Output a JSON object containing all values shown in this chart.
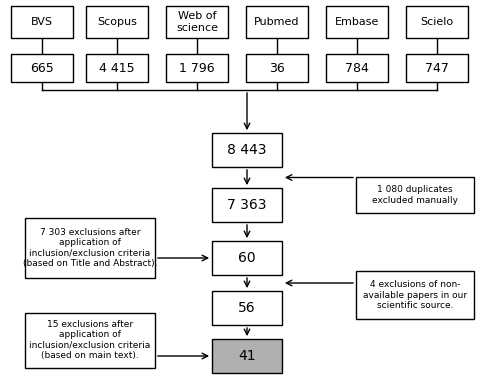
{
  "bg_color": "#ffffff",
  "databases": [
    "BVS",
    "Scopus",
    "Web of\nscience",
    "Pubmed",
    "Embase",
    "Scielo"
  ],
  "db_counts": [
    "665",
    "4 415",
    "1 796",
    "36",
    "784",
    "747"
  ],
  "main_values": [
    "8 443",
    "7 363",
    "60",
    "56",
    "41"
  ],
  "right_note1": "1 080 duplicates\nexcluded manually",
  "right_note2": "4 exclusions of non-\navailable papers in our\nscientific source.",
  "left_note1": "7 303 exclusions after\napplication of\ninclusion/exclusion criteria\n(based on Title and Abstract).",
  "left_note2": "15 exclusions after\napplication of\ninclusion/exclusion criteria\n(based on main text).",
  "font_size_db": 8,
  "font_size_count": 9,
  "font_size_main": 10,
  "font_size_note": 6.5
}
